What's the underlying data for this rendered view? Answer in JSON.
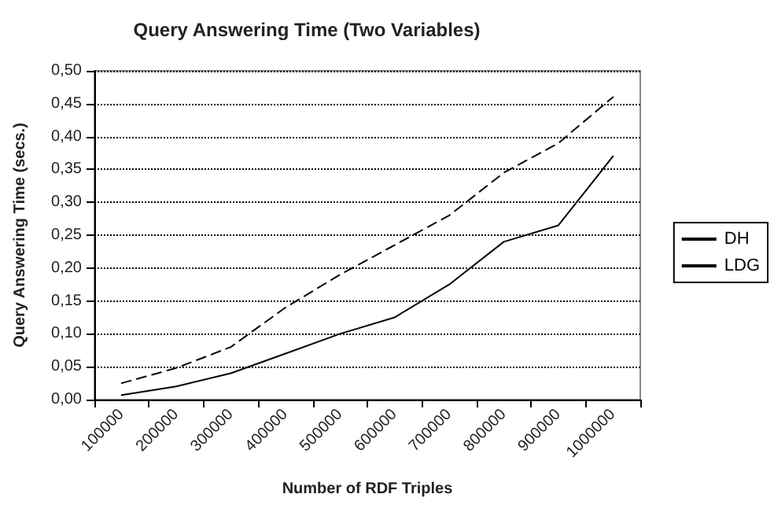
{
  "chart_data": {
    "type": "line",
    "title": "Query Answering Time (Two Variables)",
    "xlabel": "Number of RDF Triples",
    "ylabel": "Query Answering Time (secs.)",
    "categories": [
      "100000",
      "200000",
      "300000",
      "400000",
      "500000",
      "600000",
      "700000",
      "800000",
      "900000",
      "1000000"
    ],
    "series": [
      {
        "name": "DH",
        "color": "#000000",
        "line_style": "solid",
        "values": [
          0.007,
          0.02,
          0.04,
          0.07,
          0.1,
          0.125,
          0.175,
          0.24,
          0.265,
          0.37
        ]
      },
      {
        "name": "LDG",
        "color": "#000000",
        "line_style": "dashed",
        "values": [
          0.025,
          0.048,
          0.08,
          0.14,
          0.19,
          0.235,
          0.28,
          0.345,
          0.39,
          0.46
        ]
      }
    ],
    "ylim": [
      0,
      0.5
    ],
    "yticks": [
      {
        "value": 0,
        "label": "0,00"
      },
      {
        "value": 0.05,
        "label": "0,05"
      },
      {
        "value": 0.1,
        "label": "0,10"
      },
      {
        "value": 0.15,
        "label": "0,15"
      },
      {
        "value": 0.2,
        "label": "0,20"
      },
      {
        "value": 0.25,
        "label": "0,25"
      },
      {
        "value": 0.3,
        "label": "0,30"
      },
      {
        "value": 0.35,
        "label": "0,35"
      },
      {
        "value": 0.4,
        "label": "0,40"
      },
      {
        "value": 0.45,
        "label": "0,45"
      },
      {
        "value": 0.5,
        "label": "0,50"
      }
    ],
    "grid": "y",
    "legend": "right",
    "marker": "none"
  }
}
